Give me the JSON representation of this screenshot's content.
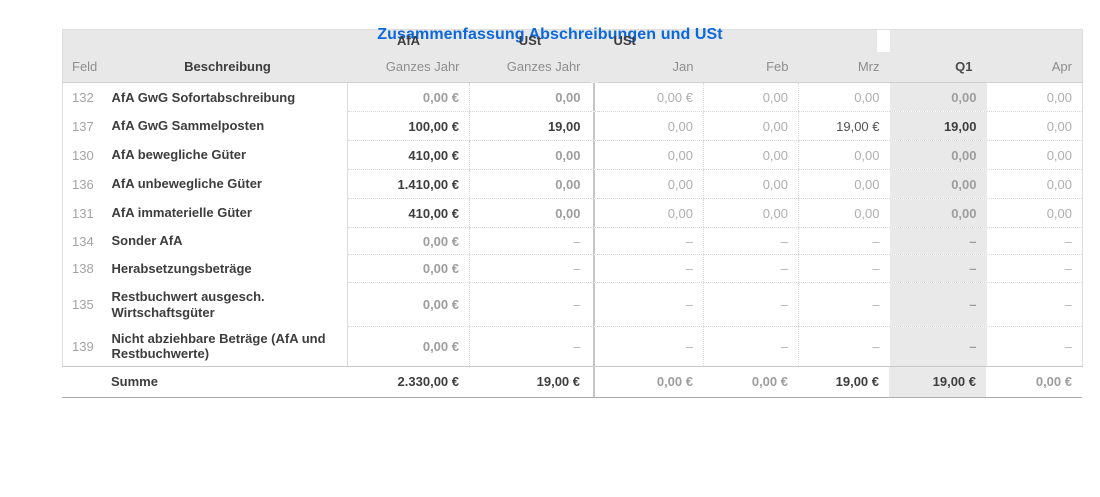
{
  "title": "Zusammenfassung Abschreibungen und USt",
  "colors": {
    "title_blue": "#0c68dd",
    "header_bg": "#e8e8e8",
    "q1_column_bg": "#e9e9e9",
    "bold_value_text": "#3e3e3e",
    "muted_value_text": "#aeaeae"
  },
  "table": {
    "group_header": {
      "afa": "AfA",
      "ust_year": "USt",
      "ust_months": "USt"
    },
    "column_header": {
      "feld": "Feld",
      "beschreibung": "Beschreibung",
      "afa_year": "Ganzes Jahr",
      "ust_year": "Ganzes Jahr",
      "jan": "Jan",
      "feb": "Feb",
      "mrz": "Mrz",
      "q1": "Q1",
      "apr": "Apr"
    },
    "rows": [
      {
        "feld": "132",
        "beschreibung": "AfA GwG Sofortabschreibung",
        "afa_year": "0,00 €",
        "ust_year": "0,00",
        "jan": "0,00 €",
        "feb": "0,00",
        "mrz": "0,00",
        "q1": "0,00",
        "apr": "0,00"
      },
      {
        "feld": "137",
        "beschreibung": "AfA GwG Sammelposten",
        "afa_year": "100,00 €",
        "ust_year": "19,00",
        "jan": "0,00",
        "feb": "0,00",
        "mrz": "19,00 €",
        "q1": "19,00",
        "apr": "0,00"
      },
      {
        "feld": "130",
        "beschreibung": "AfA bewegliche Güter",
        "afa_year": "410,00 €",
        "ust_year": "0,00",
        "jan": "0,00",
        "feb": "0,00",
        "mrz": "0,00",
        "q1": "0,00",
        "apr": "0,00"
      },
      {
        "feld": "136",
        "beschreibung": "AfA unbewegliche Güter",
        "afa_year": "1.410,00 €",
        "ust_year": "0,00",
        "jan": "0,00",
        "feb": "0,00",
        "mrz": "0,00",
        "q1": "0,00",
        "apr": "0,00"
      },
      {
        "feld": "131",
        "beschreibung": "AfA immaterielle Güter",
        "afa_year": "410,00 €",
        "ust_year": "0,00",
        "jan": "0,00",
        "feb": "0,00",
        "mrz": "0,00",
        "q1": "0,00",
        "apr": "0,00"
      },
      {
        "feld": "134",
        "beschreibung": "Sonder AfA",
        "afa_year": "0,00 €",
        "ust_year": "–",
        "jan": "–",
        "feb": "–",
        "mrz": "–",
        "q1": "–",
        "apr": "–"
      },
      {
        "feld": "138",
        "beschreibung": "Herabsetzungsbeträge",
        "afa_year": "0,00 €",
        "ust_year": "–",
        "jan": "–",
        "feb": "–",
        "mrz": "–",
        "q1": "–",
        "apr": "–"
      },
      {
        "feld": "135",
        "beschreibung": "Restbuchwert ausgesch. Wirtschaftsgüter",
        "afa_year": "0,00 €",
        "ust_year": "–",
        "jan": "–",
        "feb": "–",
        "mrz": "–",
        "q1": "–",
        "apr": "–"
      },
      {
        "feld": "139",
        "beschreibung": "Nicht abziehbare Beträge (AfA und Restbuchwerte)",
        "afa_year": "0,00 €",
        "ust_year": "–",
        "jan": "–",
        "feb": "–",
        "mrz": "–",
        "q1": "–",
        "apr": "–"
      }
    ],
    "summe": {
      "label": "Summe",
      "afa_year": "2.330,00 €",
      "ust_year": "19,00 €",
      "jan": "0,00 €",
      "feb": "0,00 €",
      "mrz": "19,00 €",
      "q1": "19,00 €",
      "apr": "0,00 €"
    }
  }
}
